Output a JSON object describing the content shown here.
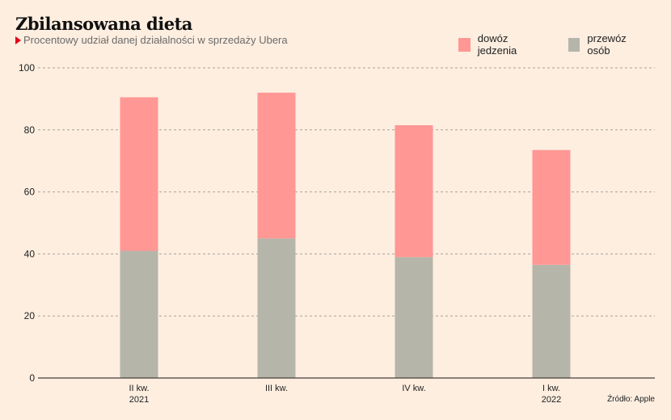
{
  "title": "Zbilansowana dieta",
  "subtitle": "Procentowy udział danej działalności w sprzedaży Ubera",
  "source": "Źródło: Apple",
  "colors": {
    "background": "#fdeee0",
    "food": "#ff9795",
    "rides": "#b5b5aa",
    "accent": "#e2001a"
  },
  "chart_data": {
    "type": "bar",
    "stacked": true,
    "title": "Zbilansowana dieta",
    "subtitle": "Procentowy udział danej działalności w sprzedaży Ubera",
    "categories": [
      [
        "II kw.",
        "2021"
      ],
      [
        "III kw.",
        ""
      ],
      [
        "IV kw.",
        ""
      ],
      [
        "I kw.",
        "2022"
      ]
    ],
    "series": [
      {
        "name": "przewóz osób",
        "color": "#b5b5aa",
        "values": [
          41,
          45,
          39,
          36.5
        ]
      },
      {
        "name": "dowóz jedzenia",
        "color": "#ff9795",
        "values": [
          49.5,
          47,
          42.5,
          37
        ]
      }
    ],
    "legend": [
      {
        "name": "dowóz jedzenia",
        "color": "#ff9795"
      },
      {
        "name": "przewóz osób",
        "color": "#b5b5aa"
      }
    ],
    "legend_position": "top-right",
    "yticks": [
      0,
      20,
      40,
      60,
      80,
      100
    ],
    "ylim": [
      0,
      100
    ],
    "grid": true,
    "xlabel": "",
    "ylabel": ""
  }
}
